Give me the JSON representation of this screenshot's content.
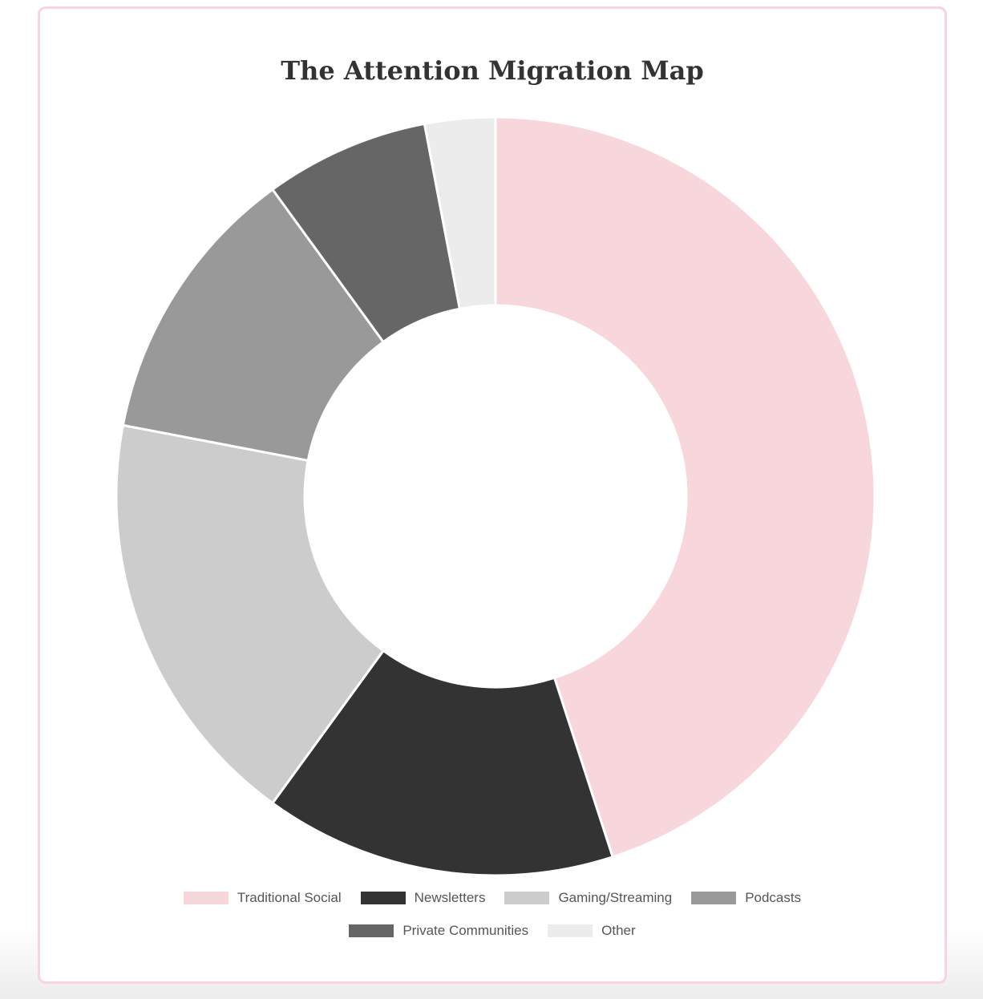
{
  "chart_data": {
    "type": "pie",
    "title": "The Attention Migration Map",
    "categories": [
      "Traditional Social",
      "Newsletters",
      "Gaming/Streaming",
      "Podcasts",
      "Private Communities",
      "Other"
    ],
    "values": [
      45,
      15,
      18,
      12,
      7,
      3
    ],
    "colors": [
      "#f8d7dc",
      "#333333",
      "#cccccc",
      "#999999",
      "#666666",
      "#ececec"
    ],
    "donut": true,
    "start_angle": "top",
    "direction": "clockwise",
    "legend_placement": "bottom"
  }
}
